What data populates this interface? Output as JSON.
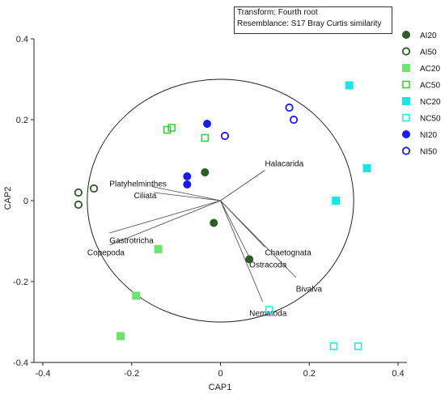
{
  "chart_data": {
    "type": "scatter",
    "title": "",
    "xlabel": "CAP1",
    "ylabel": "CAP2",
    "xlim": [
      -0.42,
      0.42
    ],
    "ylim": [
      -0.4,
      0.4
    ],
    "x_ticks": [
      -0.4,
      -0.2,
      0,
      0.2,
      0.4
    ],
    "y_ticks": [
      -0.4,
      -0.2,
      0,
      0.2,
      0.4
    ],
    "x_tick_labels": [
      "-0.4",
      "-0.2",
      "0",
      "0.2",
      "0.4"
    ],
    "y_tick_labels": [
      "-0.4",
      "-0.2",
      "0",
      "0.2",
      "0.4"
    ],
    "grid": false,
    "legend_position": "right",
    "transform_label": "Transform: Fourth root",
    "resemblance_label": "Resemblance: S17 Bray Curtis similarity",
    "circle_radius": 0.3,
    "series": [
      {
        "name": "AI20",
        "marker": "circle",
        "filled": true,
        "color": "#2d5a27",
        "points": [
          [
            -0.035,
            0.07
          ],
          [
            -0.015,
            -0.055
          ],
          [
            0.065,
            -0.145
          ]
        ]
      },
      {
        "name": "AI50",
        "marker": "circle",
        "filled": false,
        "color": "#2d5a27",
        "points": [
          [
            -0.32,
            0.02
          ],
          [
            -0.32,
            -0.01
          ],
          [
            -0.285,
            0.03
          ]
        ]
      },
      {
        "name": "AC20",
        "marker": "square",
        "filled": true,
        "color": "#6ee36e",
        "points": [
          [
            -0.14,
            -0.12
          ],
          [
            -0.19,
            -0.235
          ],
          [
            -0.225,
            -0.335
          ]
        ]
      },
      {
        "name": "AC50",
        "marker": "square",
        "filled": false,
        "color": "#33cc33",
        "points": [
          [
            -0.12,
            0.175
          ],
          [
            -0.11,
            0.18
          ],
          [
            -0.035,
            0.155
          ]
        ]
      },
      {
        "name": "NC20",
        "marker": "square",
        "filled": true,
        "color": "#1de5e5",
        "points": [
          [
            0.29,
            0.285
          ],
          [
            0.33,
            0.08
          ],
          [
            0.26,
            0.0
          ]
        ]
      },
      {
        "name": "NC50",
        "marker": "square",
        "filled": false,
        "color": "#1de5e5",
        "points": [
          [
            0.11,
            -0.27
          ],
          [
            0.255,
            -0.36
          ],
          [
            0.31,
            -0.36
          ]
        ]
      },
      {
        "name": "NI20",
        "marker": "circle",
        "filled": true,
        "color": "#1a1aee",
        "points": [
          [
            -0.03,
            0.19
          ],
          [
            -0.075,
            0.06
          ],
          [
            -0.075,
            0.04
          ]
        ]
      },
      {
        "name": "NI50",
        "marker": "circle",
        "filled": false,
        "color": "#1a1aee",
        "points": [
          [
            0.155,
            0.23
          ],
          [
            0.165,
            0.2
          ],
          [
            0.01,
            0.16
          ]
        ]
      }
    ],
    "vectors": [
      {
        "label": "Halacarida",
        "end": [
          0.1,
          0.075
        ],
        "label_pos": [
          0.1,
          0.085
        ]
      },
      {
        "label": "Platyhelminthes",
        "end": [
          -0.155,
          0.035
        ],
        "label_pos": [
          -0.25,
          0.035
        ]
      },
      {
        "label": "Ciliata",
        "end": [
          -0.15,
          0.02
        ],
        "label_pos": [
          -0.195,
          0.006
        ]
      },
      {
        "label": "Gastrotricha",
        "end": [
          -0.25,
          -0.08
        ],
        "label_pos": [
          -0.25,
          -0.105
        ]
      },
      {
        "label": "Copepoda",
        "end": [
          -0.25,
          -0.11
        ],
        "label_pos": [
          -0.3,
          -0.135
        ]
      },
      {
        "label": "Chaetognata",
        "end": [
          0.1,
          -0.115
        ],
        "label_pos": [
          0.1,
          -0.135
        ]
      },
      {
        "label": "Ostracoda",
        "end": [
          0.065,
          -0.14
        ],
        "label_pos": [
          0.065,
          -0.165
        ]
      },
      {
        "label": "Bivalva",
        "end": [
          0.17,
          -0.19
        ],
        "label_pos": [
          0.17,
          -0.225
        ]
      },
      {
        "label": "Nematoda",
        "end": [
          0.095,
          -0.25
        ],
        "label_pos": [
          0.065,
          -0.285
        ]
      }
    ]
  }
}
